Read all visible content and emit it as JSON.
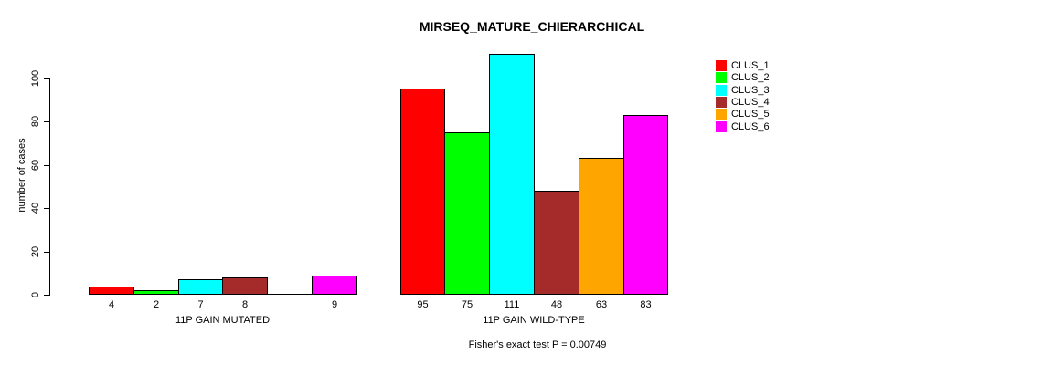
{
  "window": {
    "background": "#ffffff",
    "text_color": "#000000",
    "axis_color": "#000000"
  },
  "chart_data": {
    "type": "bar",
    "title": "MIRSEQ_MATURE_CHIERARCHICAL",
    "xlabel": "",
    "ylabel": "number of cases",
    "ylim": [
      0,
      111
    ],
    "yticks": [
      "0",
      "20",
      "40",
      "60",
      "80",
      "100"
    ],
    "ytick_values": [
      0,
      20,
      40,
      60,
      80,
      100
    ],
    "grid": false,
    "legend_position": "top-right",
    "legend": [
      {
        "label": "CLUS_1",
        "color": "#FF0000"
      },
      {
        "label": "CLUS_2",
        "color": "#00FF00"
      },
      {
        "label": "CLUS_3",
        "color": "#00FFFF"
      },
      {
        "label": "CLUS_4",
        "color": "#A52A2A"
      },
      {
        "label": "CLUS_5",
        "color": "#FFA500"
      },
      {
        "label": "CLUS_6",
        "color": "#FF00FF"
      }
    ],
    "series_colors": [
      "#FF0000",
      "#00FF00",
      "#00FFFF",
      "#A52A2A",
      "#FFA500",
      "#FF00FF"
    ],
    "groups": [
      {
        "label": "11P GAIN MUTATED",
        "values": [
          4,
          2,
          7,
          8,
          0,
          9
        ],
        "bar_labels": [
          "4",
          "2",
          "7",
          "8",
          "",
          "9"
        ]
      },
      {
        "label": "11P GAIN WILD-TYPE",
        "values": [
          95,
          75,
          111,
          48,
          63,
          83
        ],
        "bar_labels": [
          "95",
          "75",
          "111",
          "48",
          "63",
          "83"
        ]
      }
    ],
    "annotation": "Fisher's exact test P = 0.00749"
  }
}
